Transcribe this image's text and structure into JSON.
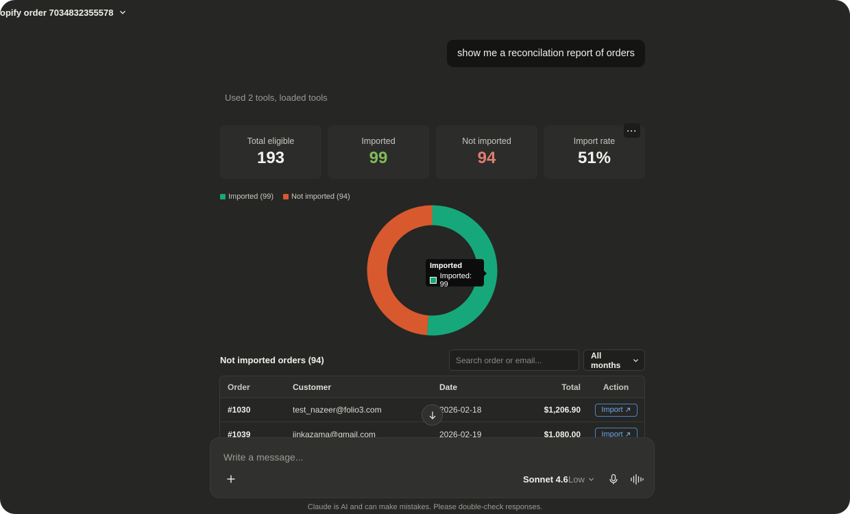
{
  "header": {
    "title": "opify order 7034832355578"
  },
  "conversation": {
    "user_message": "show me a reconcilation report of orders",
    "tools_summary": "Used 2 tools, loaded tools"
  },
  "stats": [
    {
      "label": "Total eligible",
      "value": "193"
    },
    {
      "label": "Imported",
      "value": "99"
    },
    {
      "label": "Not imported",
      "value": "94"
    },
    {
      "label": "Import rate",
      "value": "51%"
    }
  ],
  "more_button": {
    "icon": "more-horizontal-icon",
    "label": "···"
  },
  "chart_data": {
    "type": "pie",
    "variant": "donut",
    "legend_position": "top-left",
    "series": [
      {
        "name": "Imported (99)",
        "value": 99,
        "color": "#16a87a"
      },
      {
        "name": "Not imported (94)",
        "value": 94,
        "color": "#d9592e"
      }
    ],
    "tooltip": {
      "title": "Imported",
      "row": "Imported: 99"
    }
  },
  "not_imported": {
    "title": "Not imported orders (94)",
    "search_placeholder": "Search order or email...",
    "month_filter": "All months",
    "columns": [
      "Order",
      "Customer",
      "Date",
      "Total",
      "Action"
    ],
    "rows": [
      {
        "order": "#1030",
        "customer": "test_nazeer@folio3.com",
        "date": "2026-02-18",
        "total": "$1,206.90",
        "action": "Import"
      },
      {
        "order": "#1039",
        "customer": "jinkazama@gmail.com",
        "date": "2026-02-19",
        "total": "$1,080.00",
        "action": "Import"
      }
    ]
  },
  "composer": {
    "placeholder": "Write a message...",
    "model": "Sonnet 4.6",
    "effort": "Low"
  },
  "footer": {
    "disclaimer": "Claude is AI and can make mistakes. Please double-check responses."
  },
  "colors": {
    "background": "#262624",
    "imported": "#16a87a",
    "not_imported": "#d9592e",
    "accent_link": "#6ea8ec"
  }
}
